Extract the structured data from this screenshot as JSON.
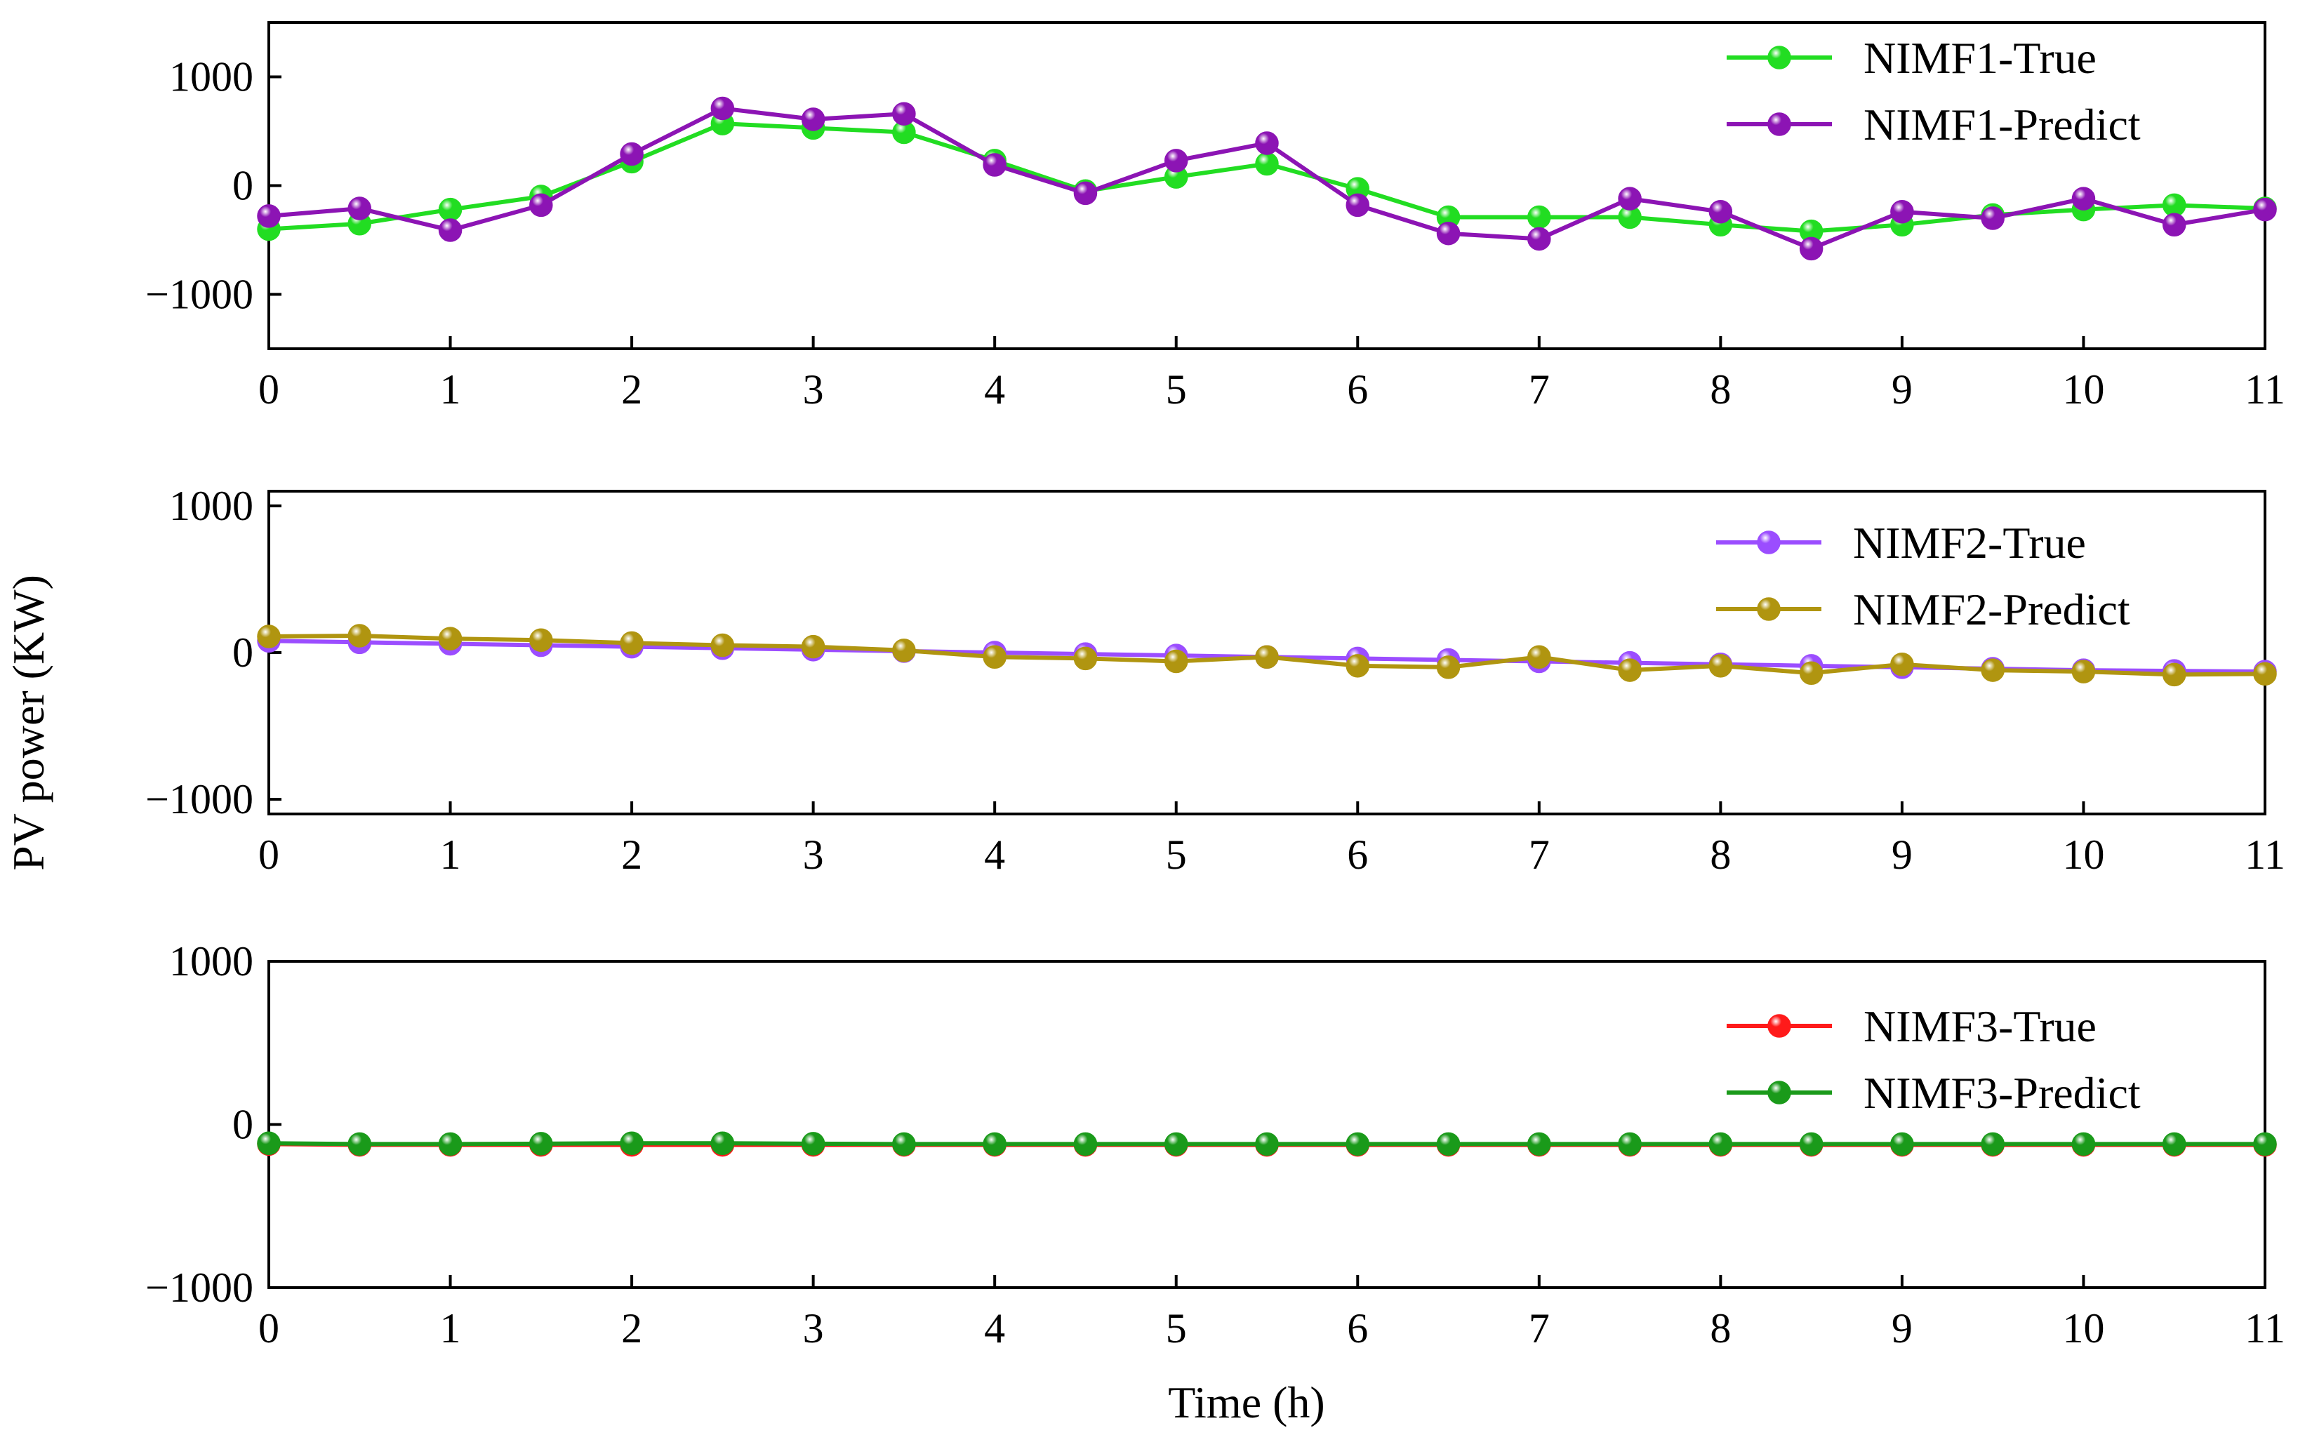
{
  "chart_data": {
    "type": "line",
    "shared_ylabel": "PV power (KW)",
    "xlabel": "Time (h)",
    "xlim": [
      0,
      11
    ],
    "xticks": [
      "0",
      "1",
      "2",
      "3",
      "4",
      "5",
      "6",
      "7",
      "8",
      "9",
      "10",
      "11"
    ],
    "x": [
      0,
      0.5,
      1,
      1.5,
      2,
      2.5,
      3,
      3.5,
      4,
      4.5,
      5,
      5.5,
      6,
      6.5,
      7,
      7.5,
      8,
      8.5,
      9,
      9.5,
      10,
      10.5,
      11
    ],
    "grid": false,
    "legend_position": "top-right",
    "panels": [
      {
        "ylim": [
          -1500,
          1500
        ],
        "yticks": [
          1000,
          0,
          -1000
        ],
        "ytick_labels": [
          "1000",
          "0",
          "−1000"
        ],
        "series": [
          {
            "name": "NIMF1-True",
            "color": "#22dd22",
            "values": [
              -400,
              -350,
              -220,
              -100,
              220,
              570,
              530,
              490,
              230,
              -50,
              80,
              200,
              -30,
              -290,
              -290,
              -290,
              -360,
              -420,
              -360,
              -270,
              -220,
              -180,
              -210
            ]
          },
          {
            "name": "NIMF1-Predict",
            "color": "#8c14b4",
            "values": [
              -280,
              -210,
              -410,
              -180,
              290,
              710,
              610,
              660,
              190,
              -70,
              230,
              390,
              -180,
              -440,
              -490,
              -120,
              -240,
              -580,
              -240,
              -300,
              -120,
              -360,
              -220
            ]
          }
        ]
      },
      {
        "ylim": [
          -1100,
          1100
        ],
        "yticks": [
          1000,
          0,
          -1000
        ],
        "ytick_labels": [
          "1000",
          "0",
          "−1000"
        ],
        "series": [
          {
            "name": "NIMF2-True",
            "color": "#9b4dff",
            "values": [
              80,
              70,
              60,
              50,
              40,
              30,
              20,
              10,
              0,
              -10,
              -20,
              -30,
              -40,
              -50,
              -60,
              -70,
              -80,
              -90,
              -100,
              -110,
              -120,
              -125,
              -130
            ]
          },
          {
            "name": "NIMF2-Predict",
            "color": "#b09510",
            "values": [
              110,
              115,
              95,
              85,
              65,
              50,
              40,
              15,
              -30,
              -40,
              -60,
              -30,
              -90,
              -100,
              -30,
              -120,
              -90,
              -140,
              -80,
              -120,
              -130,
              -150,
              -145
            ]
          }
        ]
      },
      {
        "ylim": [
          -1000,
          1000
        ],
        "yticks": [
          1000,
          0,
          -1000
        ],
        "ytick_labels": [
          "1000",
          "0",
          "−1000"
        ],
        "series": [
          {
            "name": "NIMF3-True",
            "color": "#ff1a1a",
            "values": [
              -120,
              -125,
              -125,
              -125,
              -125,
              -125,
              -125,
              -125,
              -125,
              -125,
              -125,
              -125,
              -125,
              -125,
              -125,
              -125,
              -125,
              -125,
              -125,
              -125,
              -125,
              -125,
              -125
            ]
          },
          {
            "name": "NIMF3-Predict",
            "color": "#1a9a1a",
            "values": [
              -115,
              -120,
              -120,
              -118,
              -115,
              -115,
              -118,
              -120,
              -120,
              -120,
              -120,
              -120,
              -120,
              -120,
              -120,
              -120,
              -120,
              -120,
              -120,
              -120,
              -120,
              -120,
              -120
            ]
          }
        ]
      }
    ]
  }
}
